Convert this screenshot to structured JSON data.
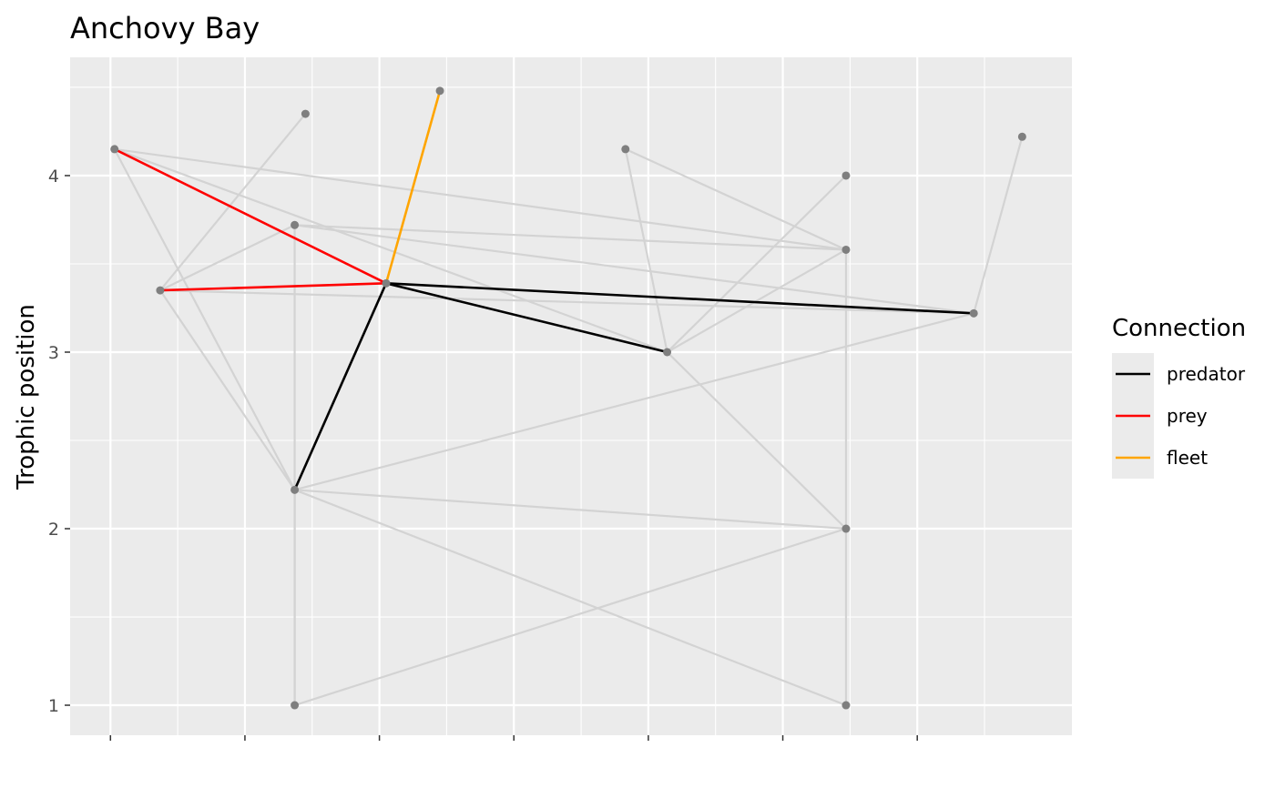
{
  "chart_data": {
    "type": "scatter",
    "title": "Anchovy Bay",
    "xlabel": "",
    "ylabel": "Trophic position",
    "xlim": [
      -0.3,
      7.15
    ],
    "ylim": [
      0.83,
      4.67
    ],
    "y_ticks": [
      "1",
      "2",
      "3",
      "4"
    ],
    "grid": true,
    "legend": {
      "title": "Connection",
      "placement": "right",
      "entries": [
        {
          "label": "predator",
          "color": "#000000"
        },
        {
          "label": "prey",
          "color": "#ff0000"
        },
        {
          "label": "fleet",
          "color": "#ffa500"
        }
      ]
    },
    "colors": {
      "panel": "#ebebeb",
      "grid": "#ffffff",
      "node": "#7f7f7f",
      "edge": "#d3d3d3"
    },
    "nodes": [
      {
        "x": 0.03,
        "y": 4.15
      },
      {
        "x": 0.37,
        "y": 3.35
      },
      {
        "x": 1.37,
        "y": 3.72
      },
      {
        "x": 1.37,
        "y": 2.22
      },
      {
        "x": 1.37,
        "y": 1.0
      },
      {
        "x": 1.45,
        "y": 4.35
      },
      {
        "x": 2.05,
        "y": 3.39
      },
      {
        "x": 2.45,
        "y": 4.48
      },
      {
        "x": 3.83,
        "y": 4.15
      },
      {
        "x": 4.14,
        "y": 3.0
      },
      {
        "x": 5.47,
        "y": 4.0
      },
      {
        "x": 5.47,
        "y": 3.58
      },
      {
        "x": 5.47,
        "y": 2.0
      },
      {
        "x": 5.47,
        "y": 1.0
      },
      {
        "x": 6.42,
        "y": 3.22
      },
      {
        "x": 6.78,
        "y": 4.22
      }
    ],
    "edges_background": [
      [
        0,
        3
      ],
      [
        0,
        6
      ],
      [
        0,
        9
      ],
      [
        0,
        11
      ],
      [
        1,
        5
      ],
      [
        1,
        3
      ],
      [
        1,
        6
      ],
      [
        1,
        14
      ],
      [
        1,
        2
      ],
      [
        2,
        4
      ],
      [
        2,
        11
      ],
      [
        2,
        14
      ],
      [
        3,
        4
      ],
      [
        3,
        12
      ],
      [
        3,
        13
      ],
      [
        3,
        14
      ],
      [
        4,
        12
      ],
      [
        8,
        9
      ],
      [
        8,
        11
      ],
      [
        9,
        10
      ],
      [
        9,
        11
      ],
      [
        9,
        12
      ],
      [
        11,
        13
      ],
      [
        14,
        15
      ]
    ],
    "edges_highlight": [
      {
        "from": 0,
        "to": 6,
        "type": "prey"
      },
      {
        "from": 1,
        "to": 6,
        "type": "prey"
      },
      {
        "from": 6,
        "to": 7,
        "type": "fleet"
      },
      {
        "from": 6,
        "to": 3,
        "type": "predator"
      },
      {
        "from": 6,
        "to": 9,
        "type": "predator"
      },
      {
        "from": 6,
        "to": 14,
        "type": "predator"
      }
    ]
  }
}
